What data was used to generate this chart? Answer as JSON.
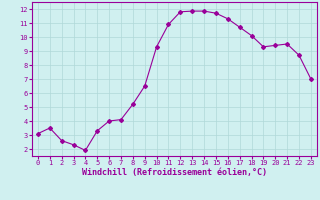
{
  "x": [
    0,
    1,
    2,
    3,
    4,
    5,
    6,
    7,
    8,
    9,
    10,
    11,
    12,
    13,
    14,
    15,
    16,
    17,
    18,
    19,
    20,
    21,
    22,
    23
  ],
  "y": [
    3.1,
    3.5,
    2.6,
    2.3,
    1.9,
    3.3,
    4.0,
    4.1,
    5.2,
    6.5,
    9.3,
    10.9,
    11.8,
    11.85,
    11.85,
    11.7,
    11.3,
    10.7,
    10.1,
    9.3,
    9.4,
    9.5,
    8.7,
    7.0
  ],
  "line_color": "#990099",
  "marker": "D",
  "marker_size": 2.0,
  "bg_color": "#d0f0f0",
  "grid_color": "#b0d8d8",
  "xlabel": "Windchill (Refroidissement éolien,°C)",
  "xlabel_color": "#990099",
  "tick_color": "#990099",
  "ylim": [
    1.5,
    12.5
  ],
  "xlim": [
    -0.5,
    23.5
  ],
  "yticks": [
    2,
    3,
    4,
    5,
    6,
    7,
    8,
    9,
    10,
    11,
    12
  ],
  "xticks": [
    0,
    1,
    2,
    3,
    4,
    5,
    6,
    7,
    8,
    9,
    10,
    11,
    12,
    13,
    14,
    15,
    16,
    17,
    18,
    19,
    20,
    21,
    22,
    23
  ],
  "spine_color": "#990099",
  "tick_fontsize": 5.0,
  "xlabel_fontsize": 6.0
}
